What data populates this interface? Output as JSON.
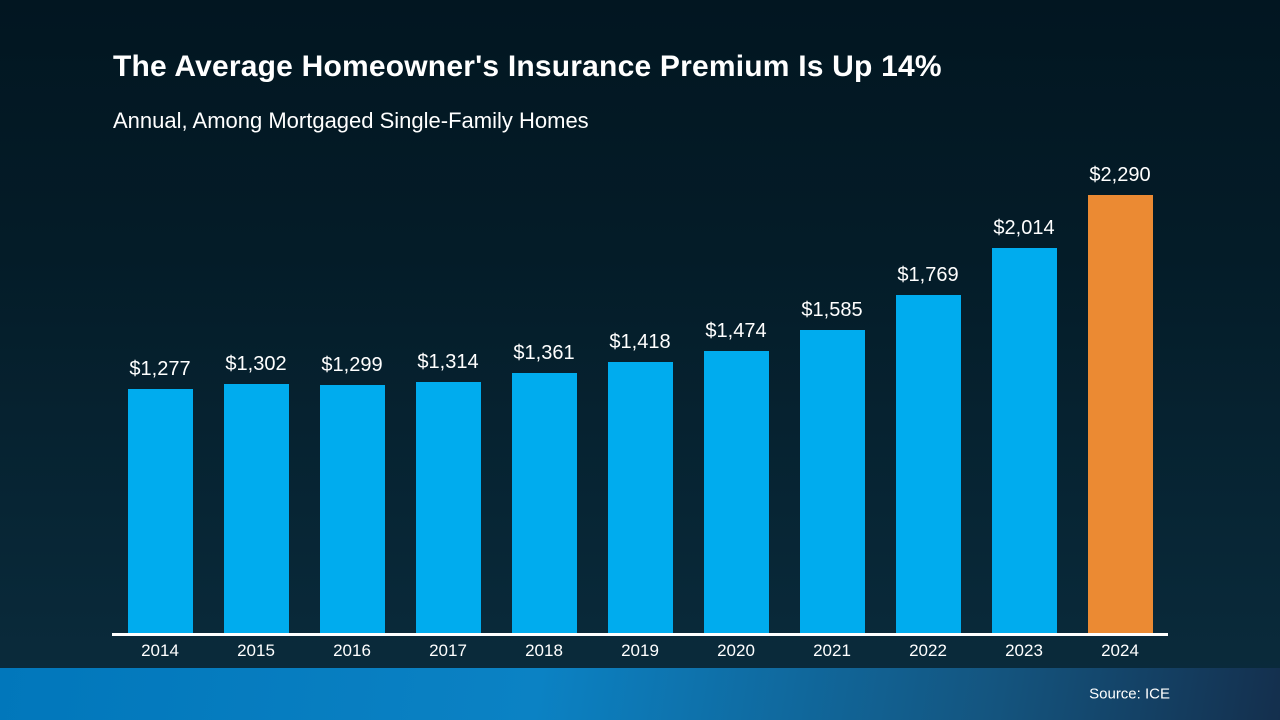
{
  "header": {
    "title": "The Average Homeowner's Insurance Premium Is Up 14%",
    "subtitle": "Annual, Among Mortgaged Single-Family Homes"
  },
  "footer": {
    "source_label": "Source: ICE"
  },
  "colors": {
    "bar_blue": "#00ACEE",
    "bar_highlight_orange": "#EB8A33",
    "background_top": "#021621",
    "background_bottom": "#0b2c3d",
    "axis_line": "#ffffff",
    "text": "#ffffff",
    "footer_gradient_left": "#0177bb",
    "footer_gradient_right": "#142f4d"
  },
  "chart_data": {
    "type": "bar",
    "title": "The Average Homeowner's Insurance Premium Is Up 14%",
    "subtitle": "Annual, Among Mortgaged Single-Family Homes",
    "xlabel": "",
    "ylabel": "",
    "categories": [
      "2014",
      "2015",
      "2016",
      "2017",
      "2018",
      "2019",
      "2020",
      "2021",
      "2022",
      "2023",
      "2024"
    ],
    "values": [
      1277,
      1302,
      1299,
      1314,
      1361,
      1418,
      1474,
      1585,
      1769,
      2014,
      2290
    ],
    "value_labels": [
      "$1,277",
      "$1,302",
      "$1,299",
      "$1,314",
      "$1,361",
      "$1,418",
      "$1,474",
      "$1,585",
      "$1,769",
      "$2,014",
      "$2,290"
    ],
    "highlight_index": 10,
    "ylim": [
      0,
      2470
    ],
    "grid": false,
    "legend": "none",
    "data_labels_position": "above-bars",
    "source": "Source: ICE"
  }
}
